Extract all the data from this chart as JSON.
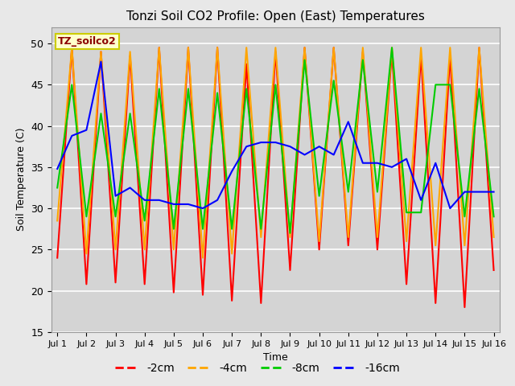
{
  "title": "Tonzi Soil CO2 Profile: Open (East) Temperatures",
  "ylabel": "Soil Temperature (C)",
  "xlabel": "Time",
  "legend_label": "TZ_soilco2",
  "ylim": [
    15,
    52
  ],
  "yticks": [
    15,
    20,
    25,
    30,
    35,
    40,
    45,
    50
  ],
  "xtick_labels": [
    "Jul 1",
    "Jul 2",
    "Jul 3",
    "Jul 4",
    "Jul 5",
    "Jul 6",
    "Jul 7",
    "Jul 8",
    "Jul 9",
    "Jul 10",
    "Jul 11",
    "Jul 12",
    "Jul 13",
    "Jul 14",
    "Jul 15",
    "Jul 16"
  ],
  "background_color": "#e8e8e8",
  "plot_bg_color": "#d4d4d4",
  "line_colors": {
    "-2cm": "#ff0000",
    "-4cm": "#ffa500",
    "-8cm": "#00cc00",
    "-16cm": "#0000ff"
  },
  "x_vals": [
    0.0,
    0.5,
    1.0,
    1.5,
    2.0,
    2.5,
    3.0,
    3.5,
    4.0,
    4.5,
    5.0,
    5.5,
    6.0,
    6.5,
    7.0,
    7.5,
    8.0,
    8.5,
    9.0,
    9.5,
    10.0,
    10.5,
    11.0,
    11.5,
    12.0,
    12.5,
    13.0,
    13.5,
    14.0,
    14.5,
    15.0
  ],
  "series": {
    "-2cm": [
      24.0,
      49.5,
      20.8,
      49.0,
      21.0,
      48.5,
      20.8,
      49.5,
      19.8,
      49.5,
      19.5,
      49.5,
      18.8,
      47.5,
      18.5,
      49.0,
      22.5,
      49.5,
      25.0,
      49.5,
      25.5,
      49.0,
      25.0,
      49.0,
      20.8,
      48.5,
      18.5,
      48.5,
      18.0,
      49.5,
      22.5
    ],
    "-4cm": [
      28.5,
      49.5,
      24.5,
      49.0,
      25.0,
      49.0,
      25.0,
      49.5,
      25.0,
      49.5,
      24.0,
      49.5,
      24.5,
      49.5,
      26.5,
      49.5,
      26.5,
      49.5,
      26.0,
      49.5,
      26.5,
      49.5,
      26.5,
      49.5,
      26.0,
      49.5,
      25.5,
      49.5,
      25.5,
      49.5,
      26.5
    ],
    "-8cm": [
      32.5,
      45.0,
      29.0,
      41.5,
      29.0,
      41.5,
      28.5,
      44.5,
      27.5,
      44.5,
      27.5,
      44.0,
      27.5,
      44.5,
      27.5,
      45.0,
      27.0,
      48.0,
      31.5,
      45.5,
      32.0,
      48.0,
      32.0,
      49.5,
      29.5,
      29.5,
      45.0,
      45.0,
      29.0,
      44.5,
      29.0
    ],
    "-16cm": [
      34.8,
      38.8,
      39.5,
      47.8,
      31.5,
      32.5,
      31.0,
      31.0,
      30.5,
      30.5,
      30.0,
      31.0,
      34.5,
      37.5,
      38.0,
      38.0,
      37.5,
      36.5,
      37.5,
      36.5,
      40.5,
      35.5,
      35.5,
      35.0,
      36.0,
      31.0,
      35.5,
      30.0,
      32.0,
      32.0,
      32.0
    ]
  }
}
